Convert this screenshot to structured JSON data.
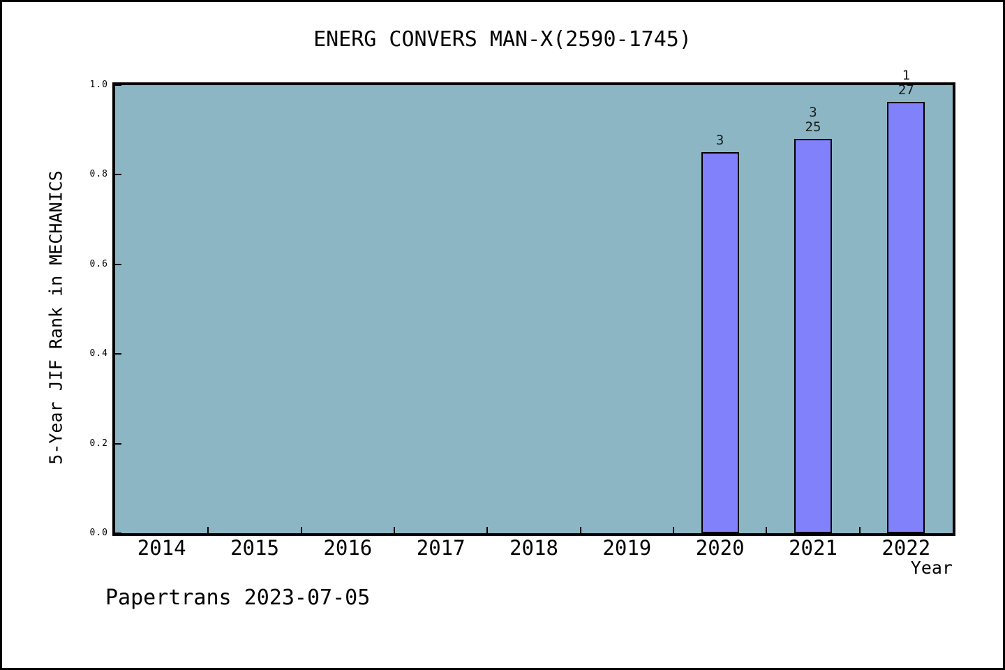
{
  "page": {
    "footer": "Papertrans 2023-07-05"
  },
  "chart_data": {
    "type": "bar",
    "title": "ENERG CONVERS MAN-X(2590-1745)",
    "xlabel": "Year",
    "ylabel": "5-Year JIF Rank in MECHANICS",
    "categories": [
      2014,
      2015,
      2016,
      2017,
      2018,
      2019,
      2020,
      2021,
      2022
    ],
    "xlim": [
      2013.5,
      2022.5
    ],
    "ylim": [
      0.0,
      1.0
    ],
    "y_ticks": [
      "0.0",
      "0.2",
      "0.4",
      "0.6",
      "0.8",
      "1.0"
    ],
    "grid": false,
    "legend": null,
    "bars": [
      {
        "year": 2020,
        "value": 0.85,
        "rank": 3,
        "annotation_lines": [
          "3"
        ]
      },
      {
        "year": 2021,
        "value": 0.88,
        "rank": 3,
        "total": 25,
        "annotation_lines": [
          "3",
          "25"
        ]
      },
      {
        "year": 2022,
        "value": 0.963,
        "rank": 1,
        "total": 27,
        "annotation_lines": [
          "1",
          "27"
        ]
      }
    ],
    "colors": {
      "plot_bg": "#8DB6C5",
      "bar_fill": "#8181FB",
      "bar_edge": "#000000",
      "text": "#000000"
    }
  }
}
